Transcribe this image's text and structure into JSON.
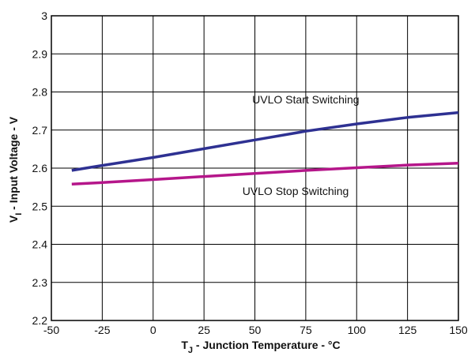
{
  "chart_data": {
    "type": "line",
    "title": "",
    "xlabel": {
      "main": "T",
      "sub": "J",
      "rest": " - Junction Temperature - °C"
    },
    "ylabel": {
      "main": "V",
      "sub": "I",
      "rest": " - Input Voltage - V"
    },
    "xlim": [
      -50,
      150
    ],
    "ylim": [
      2.2,
      3.0
    ],
    "xticks": [
      "-50",
      "-25",
      "0",
      "25",
      "50",
      "75",
      "100",
      "125",
      "150"
    ],
    "yticks": [
      "2.2",
      "2.3",
      "2.4",
      "2.5",
      "2.6",
      "2.7",
      "2.8",
      "2.9",
      "3"
    ],
    "grid": true,
    "legend": "none",
    "series": [
      {
        "name": "UVLO Start Switching",
        "color": "#2e3192",
        "x": [
          -40,
          -25,
          0,
          25,
          50,
          75,
          100,
          125,
          150
        ],
        "y": [
          2.594,
          2.607,
          2.628,
          2.651,
          2.674,
          2.697,
          2.716,
          2.733,
          2.746
        ]
      },
      {
        "name": "UVLO Stop Switching",
        "color": "#b5168a",
        "x": [
          -40,
          -25,
          0,
          25,
          50,
          75,
          100,
          125,
          150
        ],
        "y": [
          2.558,
          2.562,
          2.57,
          2.578,
          2.586,
          2.594,
          2.601,
          2.608,
          2.613
        ]
      }
    ],
    "annotations": [
      {
        "text": "UVLO Start Switching",
        "x": 75,
        "y": 2.78
      },
      {
        "text": "UVLO Stop Switching",
        "x": 70,
        "y": 2.54
      }
    ]
  }
}
